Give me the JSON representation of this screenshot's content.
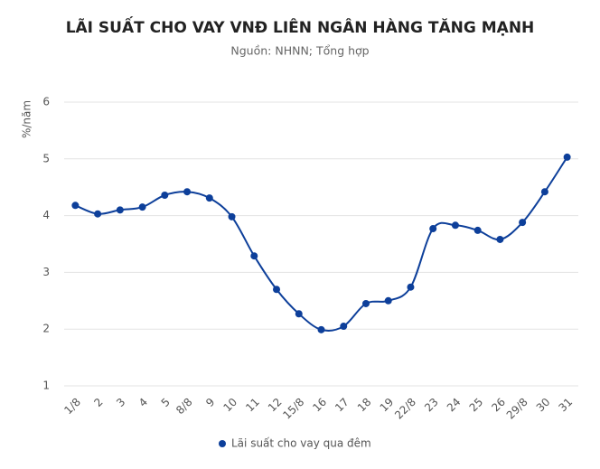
{
  "chart_data": {
    "type": "line",
    "title": "LÃI SUẤT CHO VAY VNĐ LIÊN NGÂN HÀNG TĂNG MẠNH",
    "subtitle": "Nguồn: NHNN; Tổng hợp",
    "y_label": "%/năm",
    "categories": [
      "1/8",
      "2",
      "3",
      "4",
      "5",
      "8/8",
      "9",
      "10",
      "11",
      "12",
      "15/8",
      "16",
      "17",
      "18",
      "19",
      "22/8",
      "23",
      "24",
      "25",
      "26",
      "29/8",
      "30",
      "31"
    ],
    "series": [
      {
        "name": "Lãi suất cho vay qua đêm",
        "color": "#0d3f9a",
        "values": [
          4.18,
          4.03,
          4.1,
          4.15,
          4.36,
          4.42,
          4.31,
          3.98,
          3.29,
          2.7,
          2.27,
          1.99,
          2.05,
          2.45,
          2.5,
          2.74,
          3.77,
          3.83,
          3.74,
          3.58,
          3.88,
          4.42,
          5.03
        ]
      }
    ],
    "ylim": [
      1,
      6
    ],
    "yticks": [
      1,
      2,
      3,
      4,
      5,
      6
    ],
    "grid": true,
    "smooth": true,
    "legend": "bottom"
  }
}
